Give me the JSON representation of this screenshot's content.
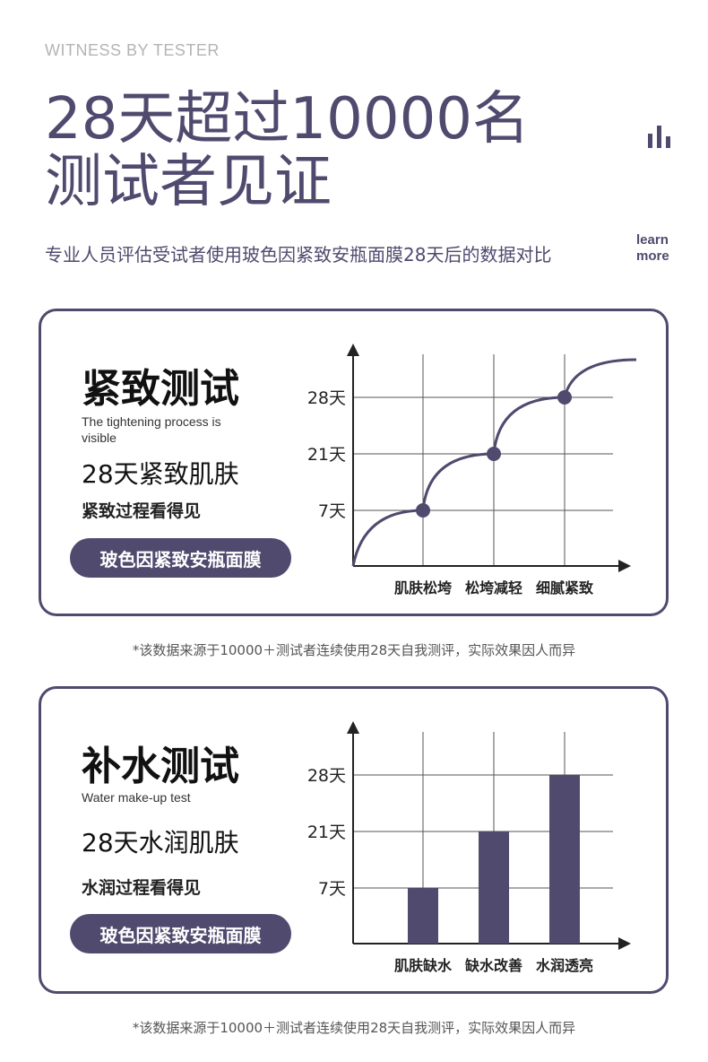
{
  "header": {
    "eyebrow": "WITNESS BY TESTER",
    "title_line1": "28天超过10000名",
    "title_line2": "测试者见证",
    "subtitle": "专业人员评估受试者使用玻色因紧致安瓶面膜28天后的数据对比",
    "learn_line1": "learn",
    "learn_line2": "more"
  },
  "colors": {
    "accent": "#4f4a6e"
  },
  "icons": {
    "bars": "bar-chart-icon"
  },
  "tests": [
    {
      "heading": "紧致测试",
      "en_caption": "The tightening process is visible",
      "claim": "28天紧致肌肤",
      "sub": "紧致过程看得见",
      "product": "玻色因紧致安瓶面膜",
      "note": "*该数据来源于10000＋测试者连续使用28天自我测评，实际效果因人而异"
    },
    {
      "heading": "补水测试",
      "en_caption": "Water make-up test",
      "claim": "28天水润肌肤",
      "sub": "水润过程看得见",
      "product": "玻色因紧致安瓶面膜",
      "note": "*该数据来源于10000＋测试者连续使用28天自我测评，实际效果因人而异"
    }
  ],
  "chart_data": [
    {
      "type": "line",
      "categories": [
        "肌肤松垮",
        "松垮减轻",
        "细腻紧致"
      ],
      "y_ticks": [
        "7天",
        "21天",
        "28天"
      ],
      "values": [
        "7天",
        "21天",
        "28天"
      ],
      "grid": true
    },
    {
      "type": "bar",
      "categories": [
        "肌肤缺水",
        "缺水改善",
        "水润透亮"
      ],
      "y_ticks": [
        "7天",
        "21天",
        "28天"
      ],
      "values": [
        "7天",
        "21天",
        "28天"
      ],
      "grid": true
    }
  ]
}
